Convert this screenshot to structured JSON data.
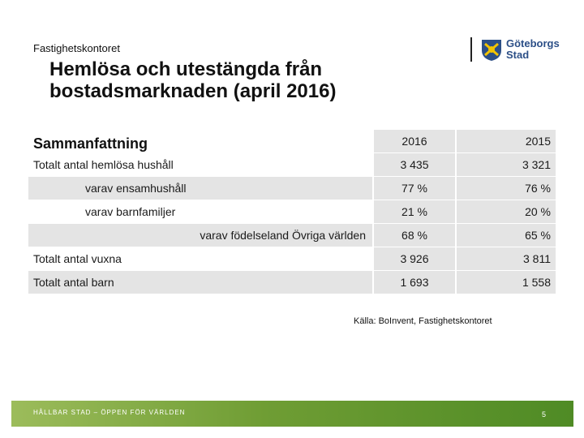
{
  "header": {
    "department": "Fastighetskontoret",
    "logo_line1": "Göteborgs",
    "logo_line2": "Stad"
  },
  "title": "Hemlösa och utestängda från bostadsmarknaden (april 2016)",
  "table": {
    "heading": "Sammanfattning",
    "col_2016": "2016",
    "col_2015": "2015",
    "rows": [
      {
        "label": "Totalt antal hemlösa hushåll",
        "v2016": "3 435",
        "v2015": "3 321"
      },
      {
        "label": "varav ensamhushåll",
        "v2016": "77 %",
        "v2015": "76 %"
      },
      {
        "label": "varav barnfamiljer",
        "v2016": "21 %",
        "v2015": "20 %"
      },
      {
        "label": "varav födelseland Övriga världen",
        "v2016": "68 %",
        "v2015": "65 %"
      },
      {
        "label": "Totalt antal vuxna",
        "v2016": "3 926",
        "v2015": "3 811"
      },
      {
        "label": "Totalt antal barn",
        "v2016": "1 693",
        "v2015": "1 558"
      }
    ]
  },
  "source": "Källa: BoInvent, Fastighetskontoret",
  "footer": {
    "slogan": "HÅLLBAR STAD – ÖPPEN FÖR VÄRLDEN",
    "page_number": "5"
  },
  "colors": {
    "footer_green": "#6f9d34",
    "logo_blue": "#2c4f87",
    "row_shade": "#e4e4e4"
  }
}
